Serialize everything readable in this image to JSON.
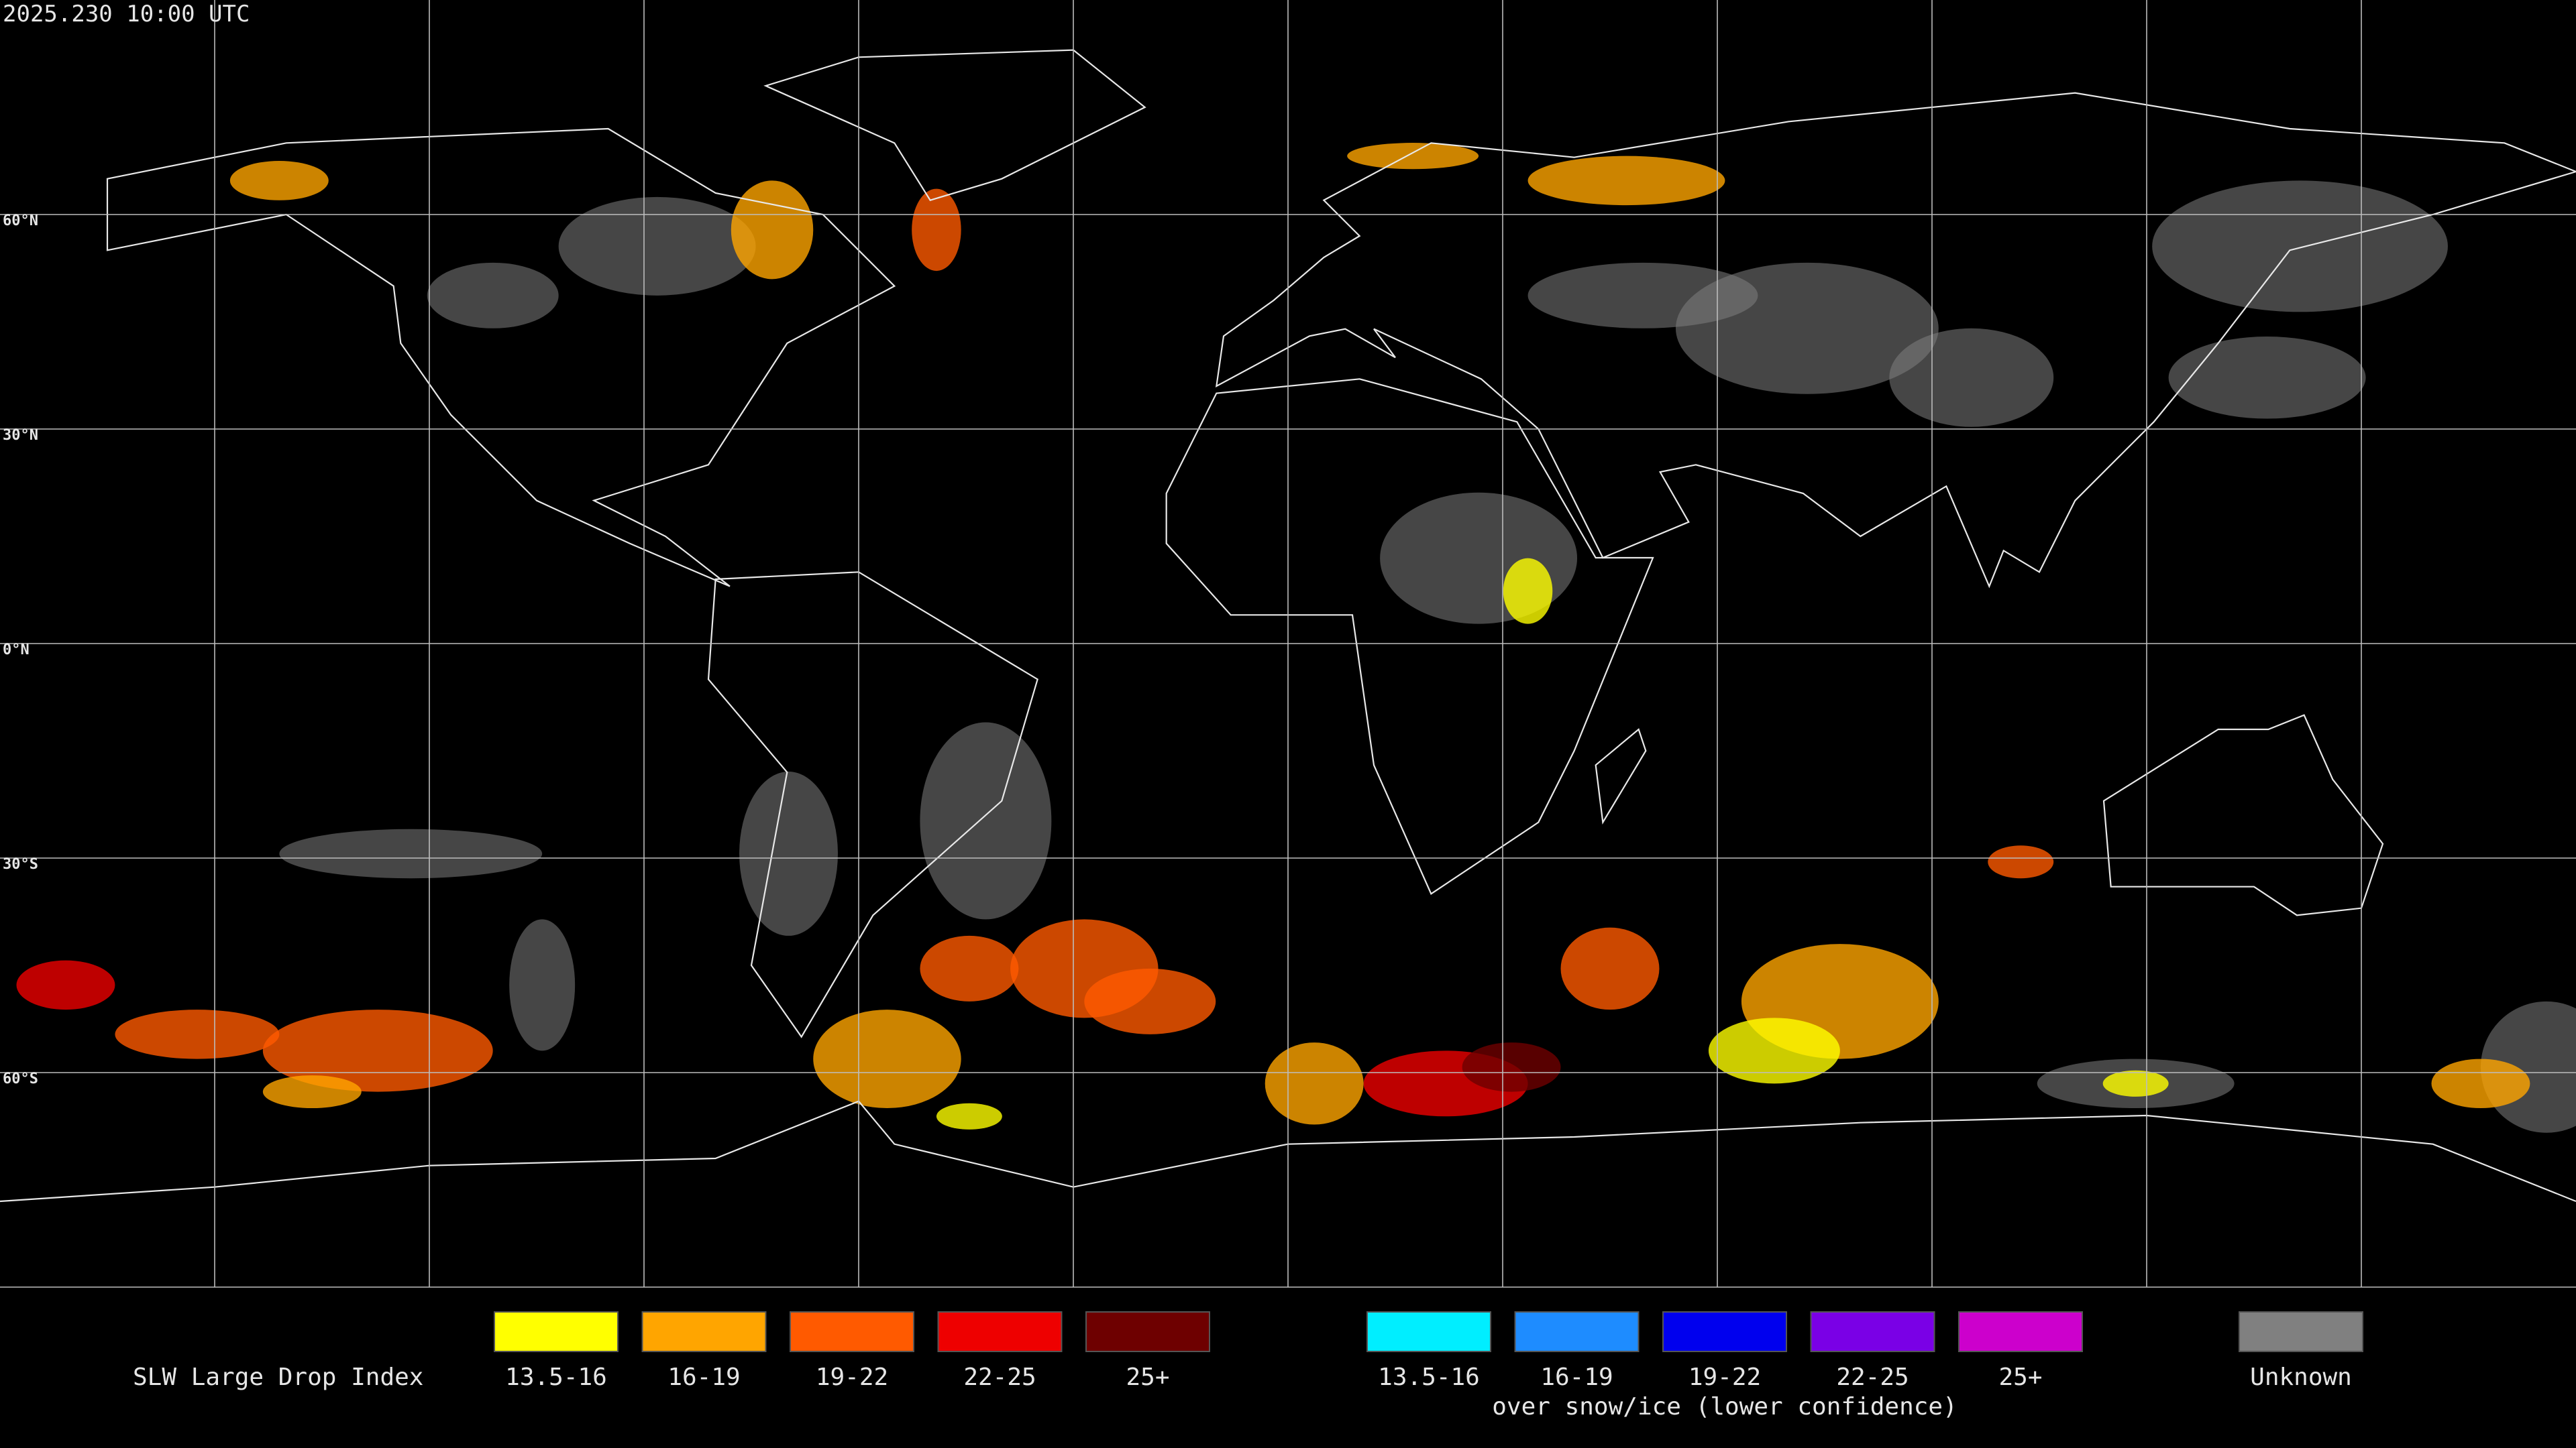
{
  "timestamp": "2025.230 10:00 UTC",
  "lat_labels": [
    "60°N",
    "30°N",
    "0°N",
    "30°S",
    "60°S"
  ],
  "legend": {
    "title": "SLW Large Drop Index",
    "groups": [
      {
        "items": [
          {
            "label": "13.5-16",
            "color": "#ffff00"
          },
          {
            "label": "16-19",
            "color": "#ffa500"
          },
          {
            "label": "19-22",
            "color": "#ff5a00"
          },
          {
            "label": "22-25",
            "color": "#ee0000"
          },
          {
            "label": "25+",
            "color": "#6e0000"
          }
        ]
      },
      {
        "items": [
          {
            "label": "13.5-16",
            "color": "#00eeff"
          },
          {
            "label": "16-19",
            "color": "#1e8cff"
          },
          {
            "label": "19-22",
            "color": "#0000ee"
          },
          {
            "label": "22-25",
            "color": "#7a00e6"
          },
          {
            "label": "25+",
            "color": "#cc00cc"
          }
        ],
        "caption": "over snow/ice (lower confidence)"
      },
      {
        "items": [
          {
            "label": "Unknown",
            "color": "#808080"
          }
        ]
      }
    ]
  }
}
